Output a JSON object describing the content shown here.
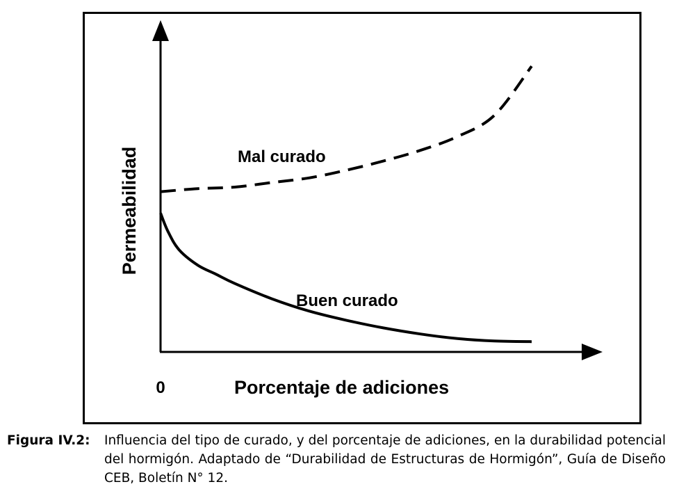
{
  "chart_data": {
    "type": "line",
    "title": "",
    "xlabel": "Porcentaje de adiciones",
    "ylabel": "Permeabilidad",
    "x_tick_labels": [
      "0"
    ],
    "xlim": [
      0,
      100
    ],
    "ylim": [
      0,
      100
    ],
    "grid": false,
    "legend": "none (series labeled inline)",
    "series": [
      {
        "name": "Mal curado",
        "style": "dashed",
        "color": "#000000",
        "x": [
          0,
          10,
          20,
          30,
          40,
          50,
          60,
          70,
          80,
          90,
          100
        ],
        "y": [
          51,
          52,
          52.5,
          54,
          55.5,
          58,
          61,
          64.5,
          69,
          76,
          92
        ]
      },
      {
        "name": "Buen curado",
        "style": "solid",
        "color": "#000000",
        "x": [
          0,
          2,
          5,
          10,
          15,
          20,
          30,
          40,
          50,
          60,
          70,
          80,
          90,
          100
        ],
        "y": [
          44,
          38,
          32,
          27,
          24,
          21,
          16,
          12,
          9,
          6.5,
          4.5,
          3,
          2.2,
          2
        ]
      }
    ]
  },
  "caption": {
    "label": "Figura IV.2:",
    "text": "Influencia del tipo de curado, y del porcentaje de adiciones, en la durabilidad potencial del hormigón. Adaptado de “Durabilidad de Estructuras de Hormigón”, Guía de Diseño CEB, Boletín N° 12."
  }
}
